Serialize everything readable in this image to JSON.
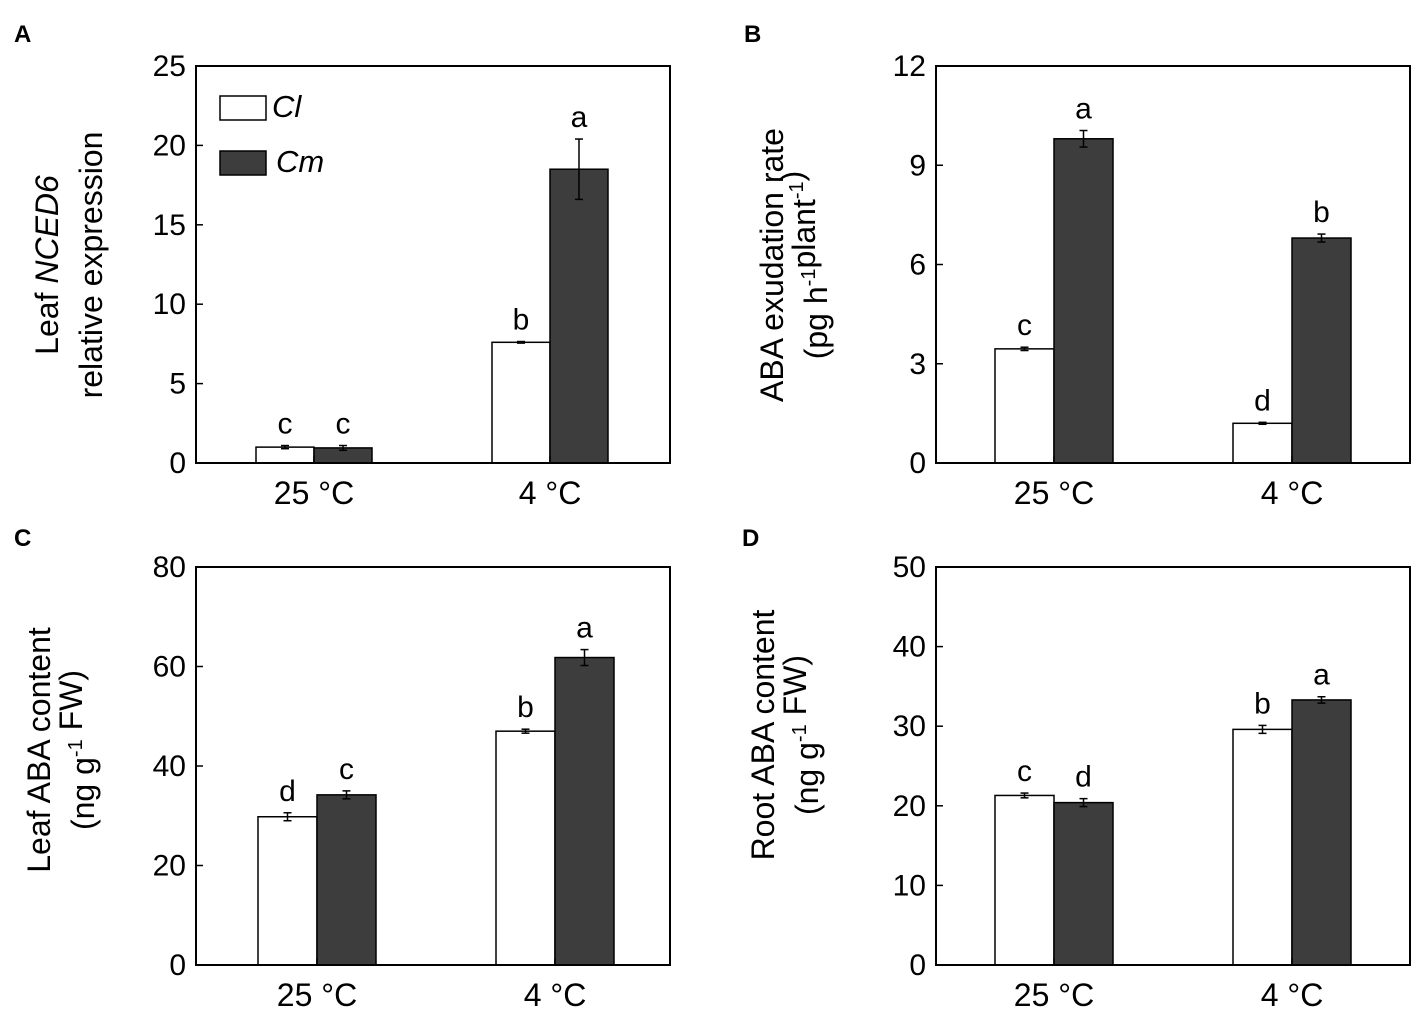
{
  "colors": {
    "cl": "#ffffff",
    "cm": "#3d3d3d",
    "line": "#000000"
  },
  "legend": [
    {
      "series": "cl",
      "label": "Cl"
    },
    {
      "series": "cm",
      "label": "Cm"
    }
  ],
  "chart_data": [
    {
      "id": "A",
      "letter": "A",
      "type": "bar",
      "categories": [
        "25 °C",
        "4 °C"
      ],
      "ylim": [
        0,
        25
      ],
      "yticks": [
        0,
        5,
        10,
        15,
        20,
        25
      ],
      "ylabel_lines": [
        [
          {
            "text": "Leaf "
          },
          {
            "text": "NCED6",
            "italic": true
          }
        ],
        [
          {
            "text": "relative expression"
          }
        ]
      ],
      "series": [
        {
          "name": "Cl",
          "values": [
            1.0,
            7.6
          ],
          "errors": [
            0.1,
            0.05
          ],
          "letters": [
            "c",
            "b"
          ]
        },
        {
          "name": "Cm",
          "values": [
            0.95,
            18.5
          ],
          "errors": [
            0.15,
            1.9
          ],
          "letters": [
            "c",
            "a"
          ]
        }
      ]
    },
    {
      "id": "B",
      "letter": "B",
      "type": "bar",
      "categories": [
        "25 °C",
        "4 °C"
      ],
      "ylim": [
        0,
        12
      ],
      "yticks": [
        0,
        3,
        6,
        9,
        12
      ],
      "ylabel_lines": [
        [
          {
            "text": "ABA exudation rate"
          }
        ],
        [
          {
            "text": "(pg h"
          },
          {
            "text": "-1",
            "sup": true
          },
          {
            "text": "plant"
          },
          {
            "text": "-1",
            "sup": true
          },
          {
            "text": ")"
          }
        ]
      ],
      "series": [
        {
          "name": "Cl",
          "values": [
            3.45,
            1.2
          ],
          "errors": [
            0.05,
            0.03
          ],
          "letters": [
            "c",
            "d"
          ]
        },
        {
          "name": "Cm",
          "values": [
            9.8,
            6.8
          ],
          "errors": [
            0.25,
            0.12
          ],
          "letters": [
            "a",
            "b"
          ]
        }
      ]
    },
    {
      "id": "C",
      "letter": "C",
      "type": "bar",
      "categories": [
        "25 °C",
        "4 °C"
      ],
      "ylim": [
        0,
        80
      ],
      "yticks": [
        0,
        20,
        40,
        60,
        80
      ],
      "ylabel_lines": [
        [
          {
            "text": "Leaf ABA  content"
          }
        ],
        [
          {
            "text": "(ng g"
          },
          {
            "text": "-1",
            "sup": true
          },
          {
            "text": " FW)"
          }
        ]
      ],
      "series": [
        {
          "name": "Cl",
          "values": [
            29.8,
            47.0
          ],
          "errors": [
            0.8,
            0.4
          ],
          "letters": [
            "d",
            "b"
          ]
        },
        {
          "name": "Cm",
          "values": [
            34.2,
            61.8
          ],
          "errors": [
            0.8,
            1.6
          ],
          "letters": [
            "c",
            "a"
          ]
        }
      ]
    },
    {
      "id": "D",
      "letter": "D",
      "type": "bar",
      "categories": [
        "25 °C",
        "4 °C"
      ],
      "ylim": [
        0,
        50
      ],
      "yticks": [
        0,
        10,
        20,
        30,
        40,
        50
      ],
      "ylabel_lines": [
        [
          {
            "text": "Root ABA content"
          }
        ],
        [
          {
            "text": "(ng g"
          },
          {
            "text": "-1",
            "sup": true
          },
          {
            "text": " FW)"
          }
        ]
      ],
      "series": [
        {
          "name": "Cl",
          "values": [
            21.3,
            29.6
          ],
          "errors": [
            0.3,
            0.5
          ],
          "letters": [
            "c",
            "b"
          ]
        },
        {
          "name": "Cm",
          "values": [
            20.4,
            33.3
          ],
          "errors": [
            0.5,
            0.4
          ],
          "letters": [
            "d",
            "a"
          ]
        }
      ]
    }
  ]
}
